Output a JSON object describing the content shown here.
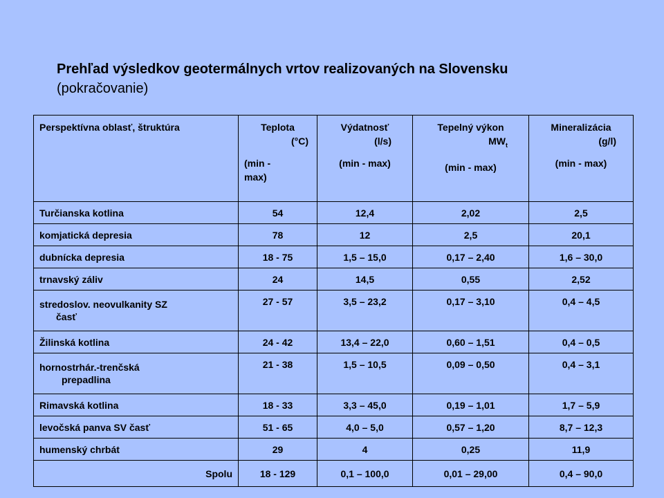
{
  "title": {
    "main": "Prehľad výsledkov geotermálnych vrtov realizovaných na Slovensku",
    "sub": "(pokračovanie)"
  },
  "table": {
    "headers": [
      {
        "label": "Perspektívna oblasť, štruktúra",
        "unit": "",
        "range": ""
      },
      {
        "label": "Teplota",
        "unit": "(°C)",
        "range": "(min - max)"
      },
      {
        "label": "Výdatnosť",
        "unit": "(l/s)",
        "range": "(min - max)"
      },
      {
        "label": "Tepelný výkon",
        "unit": "MW",
        "unit_sub": "t",
        "range": "(min - max)"
      },
      {
        "label": "Mineralizácia",
        "unit": "(g/l)",
        "range": "(min - max)"
      }
    ],
    "rows": [
      {
        "name": "Turčianska kotlina",
        "name2": "",
        "teplota": "54",
        "vydatnost": "12,4",
        "vykon": "2,02",
        "mineralizacia": "2,5"
      },
      {
        "name": "komjatická depresia",
        "name2": "",
        "teplota": "78",
        "vydatnost": "12",
        "vykon": "2,5",
        "mineralizacia": "20,1"
      },
      {
        "name": "dubnícka depresia",
        "name2": "",
        "teplota": "18 - 75",
        "vydatnost": "1,5 – 15,0",
        "vykon": "0,17 – 2,40",
        "mineralizacia": "1,6 – 30,0"
      },
      {
        "name": "trnavský záliv",
        "name2": "",
        "teplota": "24",
        "vydatnost": "14,5",
        "vykon": "0,55",
        "mineralizacia": "2,52"
      },
      {
        "name": "stredoslov. neovulkanity SZ",
        "name2": "časť",
        "teplota": "27 - 57",
        "vydatnost": "3,5 – 23,2",
        "vykon": "0,17 – 3,10",
        "mineralizacia": "0,4 – 4,5"
      },
      {
        "name": "Žilinská kotlina",
        "name2": "",
        "teplota": "24 - 42",
        "vydatnost": "13,4 – 22,0",
        "vykon": "0,60 – 1,51",
        "mineralizacia": "0,4 – 0,5"
      },
      {
        "name": "hornostrhár.-trenčská",
        "name2": "prepadlina",
        "teplota": "21 - 38",
        "vydatnost": "1,5 – 10,5",
        "vykon": "0,09 – 0,50",
        "mineralizacia": "0,4 – 3,1"
      },
      {
        "name": "Rimavská kotlina",
        "name2": "",
        "teplota": "18 - 33",
        "vydatnost": "3,3 – 45,0",
        "vykon": "0,19 – 1,01",
        "mineralizacia": "1,7 – 5,9"
      },
      {
        "name": "levočská panva SV časť",
        "name2": "",
        "teplota": "51 - 65",
        "vydatnost": "4,0 – 5,0",
        "vykon": "0,57 – 1,20",
        "mineralizacia": "8,7 – 12,3"
      },
      {
        "name": "humenský chrbát",
        "name2": "",
        "teplota": "29",
        "vydatnost": "4",
        "vykon": "0,25",
        "mineralizacia": "11,9"
      }
    ],
    "total": {
      "label": "Spolu",
      "teplota": "18 - 129",
      "vydatnost": "0,1 – 100,0",
      "vykon": "0,01 – 29,00",
      "mineralizacia": "0,4 – 90,0"
    }
  },
  "colors": {
    "background": "#a9c2ff",
    "text": "#000000",
    "border": "#000000"
  }
}
